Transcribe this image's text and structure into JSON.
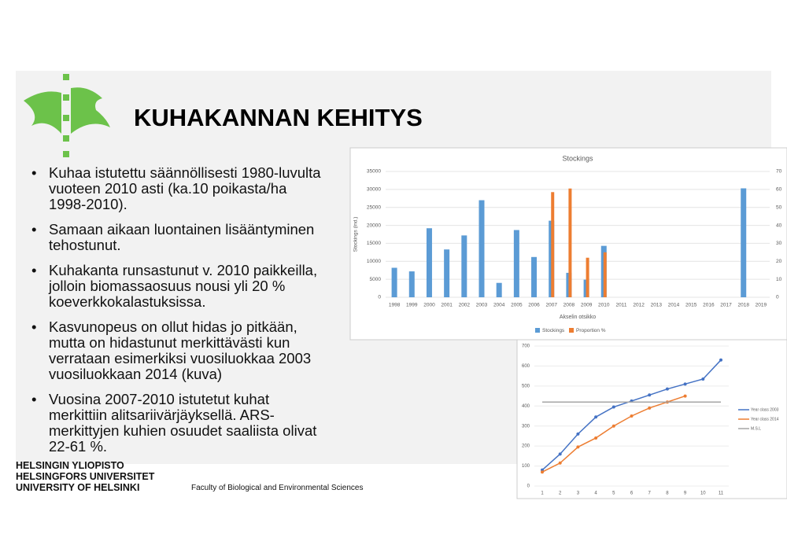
{
  "title": "KUHAKANNAN KEHITYS",
  "bullets": [
    "Kuhaa istutettu säännöllisesti 1980-luvulta vuoteen 2010 asti (ka.10 poikasta/ha 1998-2010).",
    "Samaan aikaan luontainen lisääntyminen tehostunut.",
    "Kuhakanta runsastunut v. 2010 paikkeilla, jolloin biomassaosuus nousi yli 20 % koeverkkokalastuksissa.",
    "Kasvunopeus on ollut hidas jo pitkään, mutta on hidastunut merkittävästi kun verrataan esimerkiksi vuosiluokkaa 2003 vuosiluokkaan 2014 (kuva)",
    "Vuosina 2007-2010 istutetut kuhat merkittiin alitsariivärjäyksellä. ARS-merkittyjen kuhien osuudet saaliista olivat 22-61 %."
  ],
  "logo_text": [
    "HELSINGIN YLIOPISTO",
    "HELSINGFORS UNIVERSITET",
    "UNIVERSITY OF HELSINKI"
  ],
  "footer": "Faculty of Biological and Environmental Sciences",
  "chart_data": [
    {
      "type": "bar",
      "title": "Stockings",
      "y_label": "Stockings (ind.)",
      "x_label": "Akselin otsikko",
      "categories": [
        "1998",
        "1999",
        "2000",
        "2001",
        "2002",
        "2003",
        "2004",
        "2005",
        "2006",
        "2007",
        "2008",
        "2009",
        "2010",
        "2011",
        "2012",
        "2013",
        "2014",
        "2015",
        "2016",
        "2017",
        "2018",
        "2019"
      ],
      "series": [
        {
          "name": "Stockings",
          "color": "#5b9bd5",
          "values": [
            8200,
            7200,
            19200,
            13300,
            17200,
            27000,
            4000,
            18700,
            11200,
            21300,
            6800,
            4900,
            14300,
            null,
            null,
            null,
            null,
            null,
            null,
            null,
            30300,
            null
          ]
        },
        {
          "name": "Proportion %",
          "color": "#ed7d31",
          "axis": "y2",
          "values": [
            null,
            null,
            null,
            null,
            null,
            null,
            null,
            null,
            null,
            58.5,
            60.5,
            22,
            25,
            null,
            null,
            null,
            null,
            null,
            null,
            null,
            null,
            null
          ]
        }
      ],
      "ylim": [
        0,
        35000
      ],
      "yticks": [
        0,
        5000,
        10000,
        15000,
        20000,
        25000,
        30000,
        35000
      ],
      "y2lim": [
        0,
        70
      ],
      "y2ticks": [
        0,
        10,
        20,
        30,
        40,
        50,
        60,
        70
      ],
      "grid": true,
      "legend": "bottom"
    },
    {
      "type": "line",
      "x": [
        1,
        2,
        3,
        4,
        5,
        6,
        7,
        8,
        9,
        10,
        11
      ],
      "series": [
        {
          "name": "Year class 2003",
          "color": "#4472c4",
          "marker": true,
          "values": [
            80,
            160,
            260,
            345,
            395,
            425,
            455,
            485,
            510,
            535,
            630
          ]
        },
        {
          "name": "Year class 2014",
          "color": "#ed7d31",
          "marker": true,
          "values": [
            70,
            115,
            195,
            240,
            300,
            350,
            390,
            420,
            450,
            null,
            null
          ]
        },
        {
          "name": "M.S.L",
          "color": "#a5a5a5",
          "marker": false,
          "values": [
            420,
            420,
            420,
            420,
            420,
            420,
            420,
            420,
            420,
            420,
            420
          ]
        }
      ],
      "xlim": [
        1,
        11
      ],
      "xticks": [
        1,
        2,
        3,
        4,
        5,
        6,
        7,
        8,
        9,
        10,
        11
      ],
      "ylim": [
        0,
        700
      ],
      "yticks": [
        0,
        100,
        200,
        300,
        400,
        500,
        600,
        700
      ],
      "grid": true,
      "legend": "right"
    }
  ]
}
